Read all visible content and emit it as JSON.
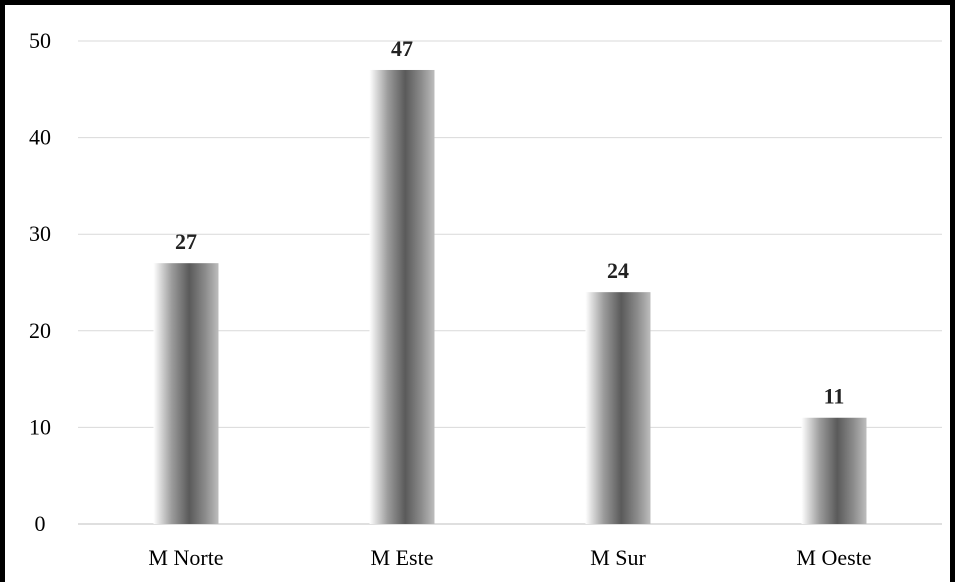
{
  "chart_data": {
    "type": "bar",
    "categories": [
      "M Norte",
      "M Este",
      "M Sur",
      "M Oeste"
    ],
    "values": [
      27,
      47,
      24,
      11
    ],
    "title": "",
    "xlabel": "",
    "ylabel": "",
    "ylim": [
      0,
      50
    ],
    "yticks": [
      0,
      10,
      20,
      30,
      40,
      50
    ],
    "grid": true,
    "legend": false,
    "data_labels": true
  }
}
